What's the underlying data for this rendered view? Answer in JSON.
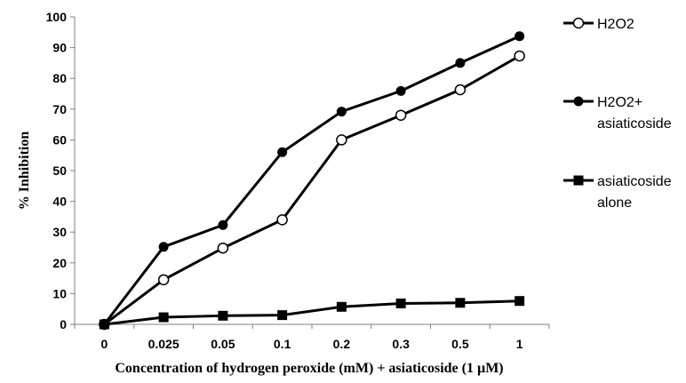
{
  "chart_data": {
    "type": "line",
    "title": "",
    "xlabel": "Concentration of hydrogen peroxide (mM) + asiaticoside (1 µM)",
    "ylabel": "% Inhibition",
    "categories": [
      "0",
      "0.025",
      "0.05",
      "0.1",
      "0.2",
      "0.3",
      "0.5",
      "1"
    ],
    "ylim": [
      0,
      100
    ],
    "yticks": [
      0,
      10,
      20,
      30,
      40,
      50,
      60,
      70,
      80,
      90,
      100
    ],
    "grid": false,
    "legend_position": "right",
    "series": [
      {
        "name": "H2O2",
        "legend_lines": [
          "H2O2"
        ],
        "marker": "open-circle",
        "color": "#000000",
        "values": [
          0,
          14.5,
          24.8,
          34,
          60,
          68,
          76.3,
          87.3
        ]
      },
      {
        "name": "H2O2+ asiaticoside",
        "legend_lines": [
          "H2O2+",
          "asiaticoside"
        ],
        "marker": "filled-circle",
        "color": "#000000",
        "values": [
          0,
          25.2,
          32.3,
          56,
          69.2,
          75.9,
          85,
          93.7
        ]
      },
      {
        "name": "asiaticoside alone",
        "legend_lines": [
          "asiaticoside",
          "alone"
        ],
        "marker": "filled-square",
        "color": "#000000",
        "values": [
          0,
          2.3,
          2.8,
          3,
          5.7,
          6.8,
          7,
          7.6
        ]
      }
    ]
  }
}
